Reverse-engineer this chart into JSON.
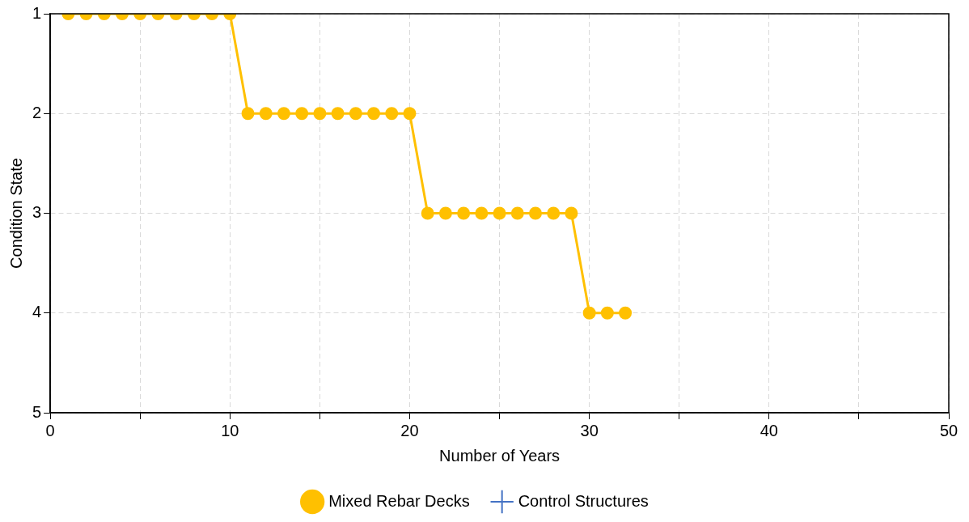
{
  "chart_data": {
    "type": "line",
    "xlabel": "Number of Years",
    "ylabel": "Condition State",
    "x": [
      1,
      2,
      3,
      4,
      5,
      6,
      7,
      8,
      9,
      10,
      11,
      12,
      13,
      14,
      15,
      16,
      17,
      18,
      19,
      20,
      21,
      22,
      23,
      24,
      25,
      26,
      27,
      28,
      29,
      30,
      31,
      32
    ],
    "series": [
      {
        "name": "Mixed Rebar Decks",
        "color": "#ffc000",
        "marker": "circle",
        "values": [
          1,
          1,
          1,
          1,
          1,
          1,
          1,
          1,
          1,
          1,
          2,
          2,
          2,
          2,
          2,
          2,
          2,
          2,
          2,
          2,
          3,
          3,
          3,
          3,
          3,
          3,
          3,
          3,
          3,
          4,
          4,
          4
        ]
      },
      {
        "name": "Control Structures",
        "color": "#4472c4",
        "marker": "cross",
        "values": [
          null,
          null,
          null,
          null,
          null,
          null,
          null,
          null,
          null,
          null,
          null,
          null,
          null,
          null,
          null,
          null,
          null,
          null,
          null,
          null,
          null,
          null,
          null,
          null,
          null,
          null,
          null,
          null,
          null,
          null,
          null,
          null
        ]
      }
    ],
    "xlim": [
      0,
      50
    ],
    "xticks": [
      0,
      {
        "value": 5,
        "label": null
      },
      10,
      {
        "value": 15,
        "label": null
      },
      20,
      {
        "value": 25,
        "label": null
      },
      30,
      {
        "value": 35,
        "label": null
      },
      40,
      {
        "value": 45,
        "label": null
      },
      50
    ],
    "ylim": [
      5,
      1
    ],
    "yticks": [
      1,
      2,
      3,
      4,
      5
    ],
    "grid": true,
    "legend": "bottom",
    "line_style": "solid"
  }
}
